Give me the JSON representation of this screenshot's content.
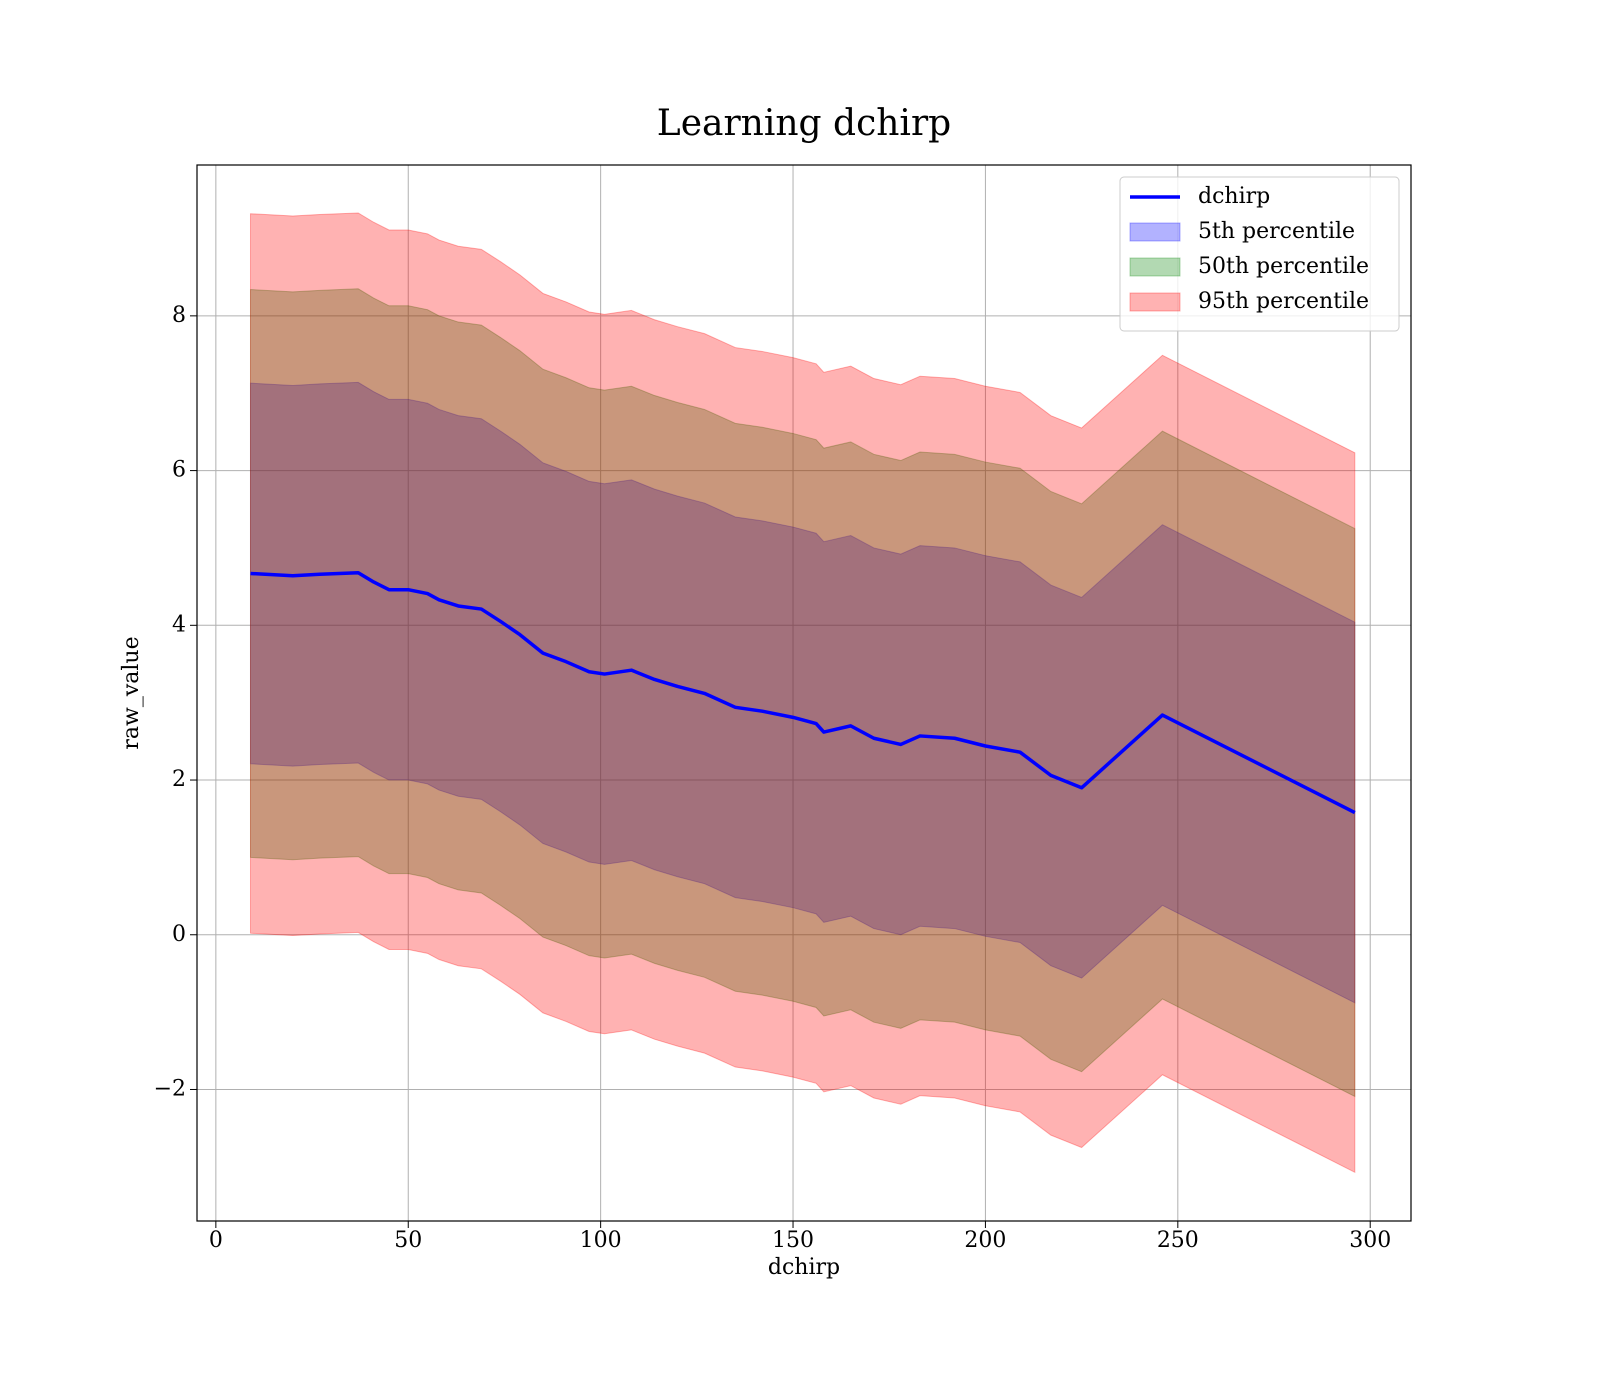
{
  "chart_data": {
    "type": "line_band",
    "title": "Learning dchirp",
    "xlabel": "dchirp",
    "ylabel": "raw_value",
    "x": [
      9,
      20,
      27,
      37,
      41,
      45,
      50,
      55,
      58,
      63,
      69,
      74,
      79,
      85,
      91,
      97,
      101,
      108,
      114,
      120,
      127,
      135,
      142,
      150,
      156,
      158,
      165,
      171,
      178,
      183,
      192,
      200,
      209,
      217,
      225,
      246,
      296
    ],
    "series": [
      {
        "name": "dchirp",
        "color": "#0000ff",
        "values": [
          4.67,
          4.64,
          4.66,
          4.68,
          4.56,
          4.46,
          4.46,
          4.41,
          4.33,
          4.25,
          4.21,
          4.05,
          3.88,
          3.64,
          3.53,
          3.4,
          3.37,
          3.42,
          3.3,
          3.21,
          3.12,
          2.94,
          2.89,
          2.81,
          2.73,
          2.62,
          2.7,
          2.54,
          2.46,
          2.57,
          2.54,
          2.44,
          2.36,
          2.06,
          1.9,
          2.84,
          1.58
        ]
      }
    ],
    "bands": [
      {
        "name": "5th percentile",
        "color": "#0000ff",
        "alpha": 0.3,
        "lower": [
          2.21,
          2.18,
          2.2,
          2.22,
          2.1,
          2.0,
          2.0,
          1.95,
          1.87,
          1.79,
          1.75,
          1.59,
          1.42,
          1.18,
          1.07,
          0.94,
          0.91,
          0.96,
          0.84,
          0.75,
          0.66,
          0.48,
          0.43,
          0.35,
          0.27,
          0.16,
          0.24,
          0.08,
          0.0,
          0.11,
          0.08,
          -0.02,
          -0.1,
          -0.4,
          -0.56,
          0.38,
          -0.88
        ],
        "upper": [
          7.13,
          7.1,
          7.12,
          7.14,
          7.02,
          6.92,
          6.92,
          6.87,
          6.79,
          6.71,
          6.67,
          6.51,
          6.34,
          6.1,
          5.99,
          5.86,
          5.83,
          5.88,
          5.76,
          5.67,
          5.58,
          5.4,
          5.35,
          5.27,
          5.19,
          5.08,
          5.16,
          5.0,
          4.92,
          5.03,
          5.0,
          4.9,
          4.82,
          4.52,
          4.36,
          5.3,
          4.04
        ]
      },
      {
        "name": "50th percentile",
        "color": "#008000",
        "alpha": 0.3,
        "lower": [
          1.0,
          0.97,
          0.99,
          1.01,
          0.89,
          0.79,
          0.79,
          0.74,
          0.66,
          0.58,
          0.54,
          0.38,
          0.21,
          -0.03,
          -0.14,
          -0.27,
          -0.3,
          -0.25,
          -0.37,
          -0.46,
          -0.55,
          -0.73,
          -0.78,
          -0.86,
          -0.94,
          -1.05,
          -0.97,
          -1.13,
          -1.21,
          -1.1,
          -1.13,
          -1.23,
          -1.31,
          -1.61,
          -1.77,
          -0.83,
          -2.09
        ],
        "upper": [
          8.34,
          8.31,
          8.33,
          8.35,
          8.23,
          8.13,
          8.13,
          8.08,
          8.0,
          7.92,
          7.88,
          7.72,
          7.55,
          7.31,
          7.2,
          7.07,
          7.04,
          7.09,
          6.97,
          6.88,
          6.79,
          6.61,
          6.56,
          6.48,
          6.4,
          6.29,
          6.37,
          6.21,
          6.13,
          6.24,
          6.21,
          6.11,
          6.03,
          5.73,
          5.57,
          6.51,
          5.25
        ]
      },
      {
        "name": "95th percentile",
        "color": "#ff0000",
        "alpha": 0.3,
        "lower": [
          0.02,
          -0.01,
          0.01,
          0.03,
          -0.09,
          -0.19,
          -0.19,
          -0.24,
          -0.32,
          -0.4,
          -0.44,
          -0.6,
          -0.77,
          -1.01,
          -1.12,
          -1.25,
          -1.28,
          -1.23,
          -1.35,
          -1.44,
          -1.53,
          -1.71,
          -1.76,
          -1.84,
          -1.92,
          -2.03,
          -1.95,
          -2.11,
          -2.19,
          -2.08,
          -2.11,
          -2.21,
          -2.29,
          -2.59,
          -2.75,
          -1.81,
          -3.07
        ],
        "upper": [
          9.32,
          9.29,
          9.31,
          9.33,
          9.21,
          9.11,
          9.11,
          9.06,
          8.98,
          8.9,
          8.86,
          8.7,
          8.53,
          8.29,
          8.18,
          8.05,
          8.02,
          8.07,
          7.95,
          7.86,
          7.77,
          7.59,
          7.54,
          7.46,
          7.38,
          7.27,
          7.35,
          7.19,
          7.11,
          7.22,
          7.19,
          7.09,
          7.01,
          6.71,
          6.55,
          7.49,
          6.23
        ]
      }
    ],
    "xlim": [
      -4.9,
      310.6
    ],
    "ylim": [
      -3.7,
      9.95
    ],
    "xticks": [
      0,
      50,
      100,
      150,
      200,
      250,
      300
    ],
    "yticks": [
      {
        "value": -2,
        "label": "−2"
      },
      0,
      2,
      4,
      6,
      8
    ],
    "grid": true,
    "legend": "upper right"
  }
}
